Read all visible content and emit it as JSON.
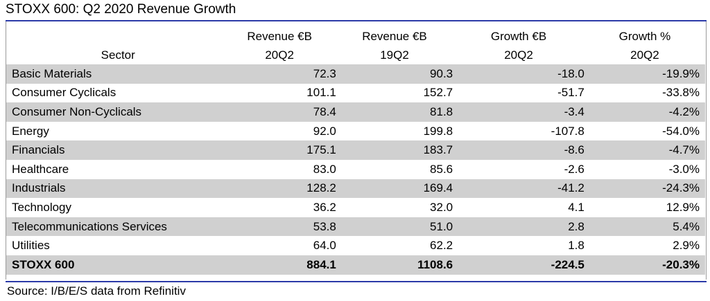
{
  "title": "STOXX 600: Q2 2020 Revenue Growth",
  "source": "Source: I/B/E/S data from Refinitiv",
  "chart_data": {
    "type": "table",
    "columns": [
      {
        "line1": "",
        "line2": "Sector"
      },
      {
        "line1": "Revenue €B",
        "line2": "20Q2"
      },
      {
        "line1": "Revenue €B",
        "line2": "19Q2"
      },
      {
        "line1": "Growth €B",
        "line2": "20Q2"
      },
      {
        "line1": "Growth %",
        "line2": "20Q2"
      }
    ],
    "rows": [
      {
        "sector": "Basic Materials",
        "rev_20q2": "72.3",
        "rev_19q2": "90.3",
        "growth_eur": "-18.0",
        "growth_pct": "-19.9%"
      },
      {
        "sector": "Consumer Cyclicals",
        "rev_20q2": "101.1",
        "rev_19q2": "152.7",
        "growth_eur": "-51.7",
        "growth_pct": "-33.8%"
      },
      {
        "sector": "Consumer Non-Cyclicals",
        "rev_20q2": "78.4",
        "rev_19q2": "81.8",
        "growth_eur": "-3.4",
        "growth_pct": "-4.2%"
      },
      {
        "sector": "Energy",
        "rev_20q2": "92.0",
        "rev_19q2": "199.8",
        "growth_eur": "-107.8",
        "growth_pct": "-54.0%"
      },
      {
        "sector": "Financials",
        "rev_20q2": "175.1",
        "rev_19q2": "183.7",
        "growth_eur": "-8.6",
        "growth_pct": "-4.7%"
      },
      {
        "sector": "Healthcare",
        "rev_20q2": "83.0",
        "rev_19q2": "85.6",
        "growth_eur": "-2.6",
        "growth_pct": "-3.0%"
      },
      {
        "sector": "Industrials",
        "rev_20q2": "128.2",
        "rev_19q2": "169.4",
        "growth_eur": "-41.2",
        "growth_pct": "-24.3%"
      },
      {
        "sector": "Technology",
        "rev_20q2": "36.2",
        "rev_19q2": "32.0",
        "growth_eur": "4.1",
        "growth_pct": "12.9%"
      },
      {
        "sector": "Telecommunications Services",
        "rev_20q2": "53.8",
        "rev_19q2": "51.0",
        "growth_eur": "2.8",
        "growth_pct": "5.4%"
      },
      {
        "sector": "Utilities",
        "rev_20q2": "64.0",
        "rev_19q2": "62.2",
        "growth_eur": "1.8",
        "growth_pct": "2.9%"
      }
    ],
    "total": {
      "sector": "STOXX 600",
      "rev_20q2": "884.1",
      "rev_19q2": "1108.6",
      "growth_eur": "-224.5",
      "growth_pct": "-20.3%"
    }
  },
  "colors": {
    "rule": "#2b3aa8",
    "shade": "#d0d0d0"
  }
}
